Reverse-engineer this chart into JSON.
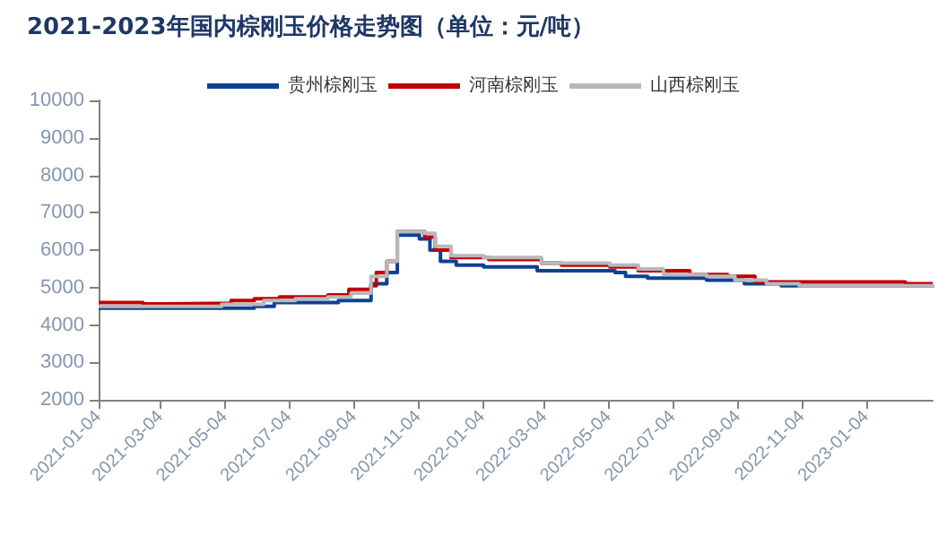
{
  "chart_data": {
    "type": "step",
    "title": "2021-2023年国内棕刚玉价格走势图（单位：元/吨）",
    "xlim": [
      "2021-01-04",
      "2023-03-08"
    ],
    "xticks": [
      "2021-01-04",
      "2021-03-04",
      "2021-05-04",
      "2021-07-04",
      "2021-09-04",
      "2021-11-04",
      "2022-01-04",
      "2022-03-04",
      "2022-05-04",
      "2022-07-04",
      "2022-09-04",
      "2022-11-04",
      "2023-01-04"
    ],
    "ylim": [
      2000,
      10000
    ],
    "yticks": [
      2000,
      3000,
      4000,
      5000,
      6000,
      7000,
      8000,
      9000,
      10000
    ],
    "grid": false,
    "legend": "top",
    "marker": "none",
    "line_style": "solid",
    "series": [
      {
        "name": "贵州棕刚玉",
        "color": "#0e4194",
        "x": [
          "2021-01-04",
          "2021-06-01",
          "2021-06-20",
          "2021-08-20",
          "2021-09-20",
          "2021-10-05",
          "2021-10-15",
          "2021-11-05",
          "2021-11-15",
          "2021-11-25",
          "2021-12-10",
          "2022-01-05",
          "2022-02-25",
          "2022-05-10",
          "2022-05-20",
          "2022-06-10",
          "2022-08-05",
          "2022-09-10",
          "2022-10-15",
          "2023-03-08"
        ],
        "values": [
          4450,
          4500,
          4600,
          4650,
          5100,
          5400,
          6400,
          6300,
          6000,
          5700,
          5600,
          5550,
          5450,
          5400,
          5300,
          5250,
          5200,
          5100,
          5050,
          5000
        ]
      },
      {
        "name": "河南棕刚玉",
        "color": "#c00000",
        "x": [
          "2021-01-04",
          "2021-02-15",
          "2021-03-10",
          "2021-05-10",
          "2021-06-01",
          "2021-06-25",
          "2021-08-10",
          "2021-08-30",
          "2021-09-20",
          "2021-09-25",
          "2021-10-05",
          "2021-10-15",
          "2021-11-10",
          "2021-11-20",
          "2021-12-05",
          "2022-01-10",
          "2022-03-01",
          "2022-03-20",
          "2022-05-05",
          "2022-06-01",
          "2022-07-20",
          "2022-08-25",
          "2022-09-20",
          "2023-02-10",
          "2023-03-08"
        ],
        "values": [
          4600,
          4560,
          4580,
          4650,
          4700,
          4750,
          4800,
          4950,
          5050,
          5400,
          5700,
          6500,
          6350,
          6000,
          5800,
          5750,
          5650,
          5600,
          5550,
          5450,
          5350,
          5300,
          5150,
          5100,
          5080
        ]
      },
      {
        "name": "山西棕刚玉",
        "color": "#b8b8bc",
        "x": [
          "2021-01-04",
          "2021-05-01",
          "2021-06-10",
          "2021-07-10",
          "2021-08-10",
          "2021-09-01",
          "2021-09-20",
          "2021-10-05",
          "2021-10-15",
          "2021-11-10",
          "2021-11-20",
          "2021-12-05",
          "2022-01-05",
          "2022-03-01",
          "2022-05-05",
          "2022-06-01",
          "2022-06-25",
          "2022-08-05",
          "2022-09-01",
          "2022-10-01",
          "2022-11-01",
          "2023-03-08"
        ],
        "values": [
          4500,
          4550,
          4650,
          4700,
          4750,
          4850,
          5300,
          5700,
          6500,
          6450,
          6100,
          5850,
          5800,
          5650,
          5600,
          5500,
          5350,
          5300,
          5200,
          5100,
          5050,
          5000
        ]
      }
    ]
  }
}
